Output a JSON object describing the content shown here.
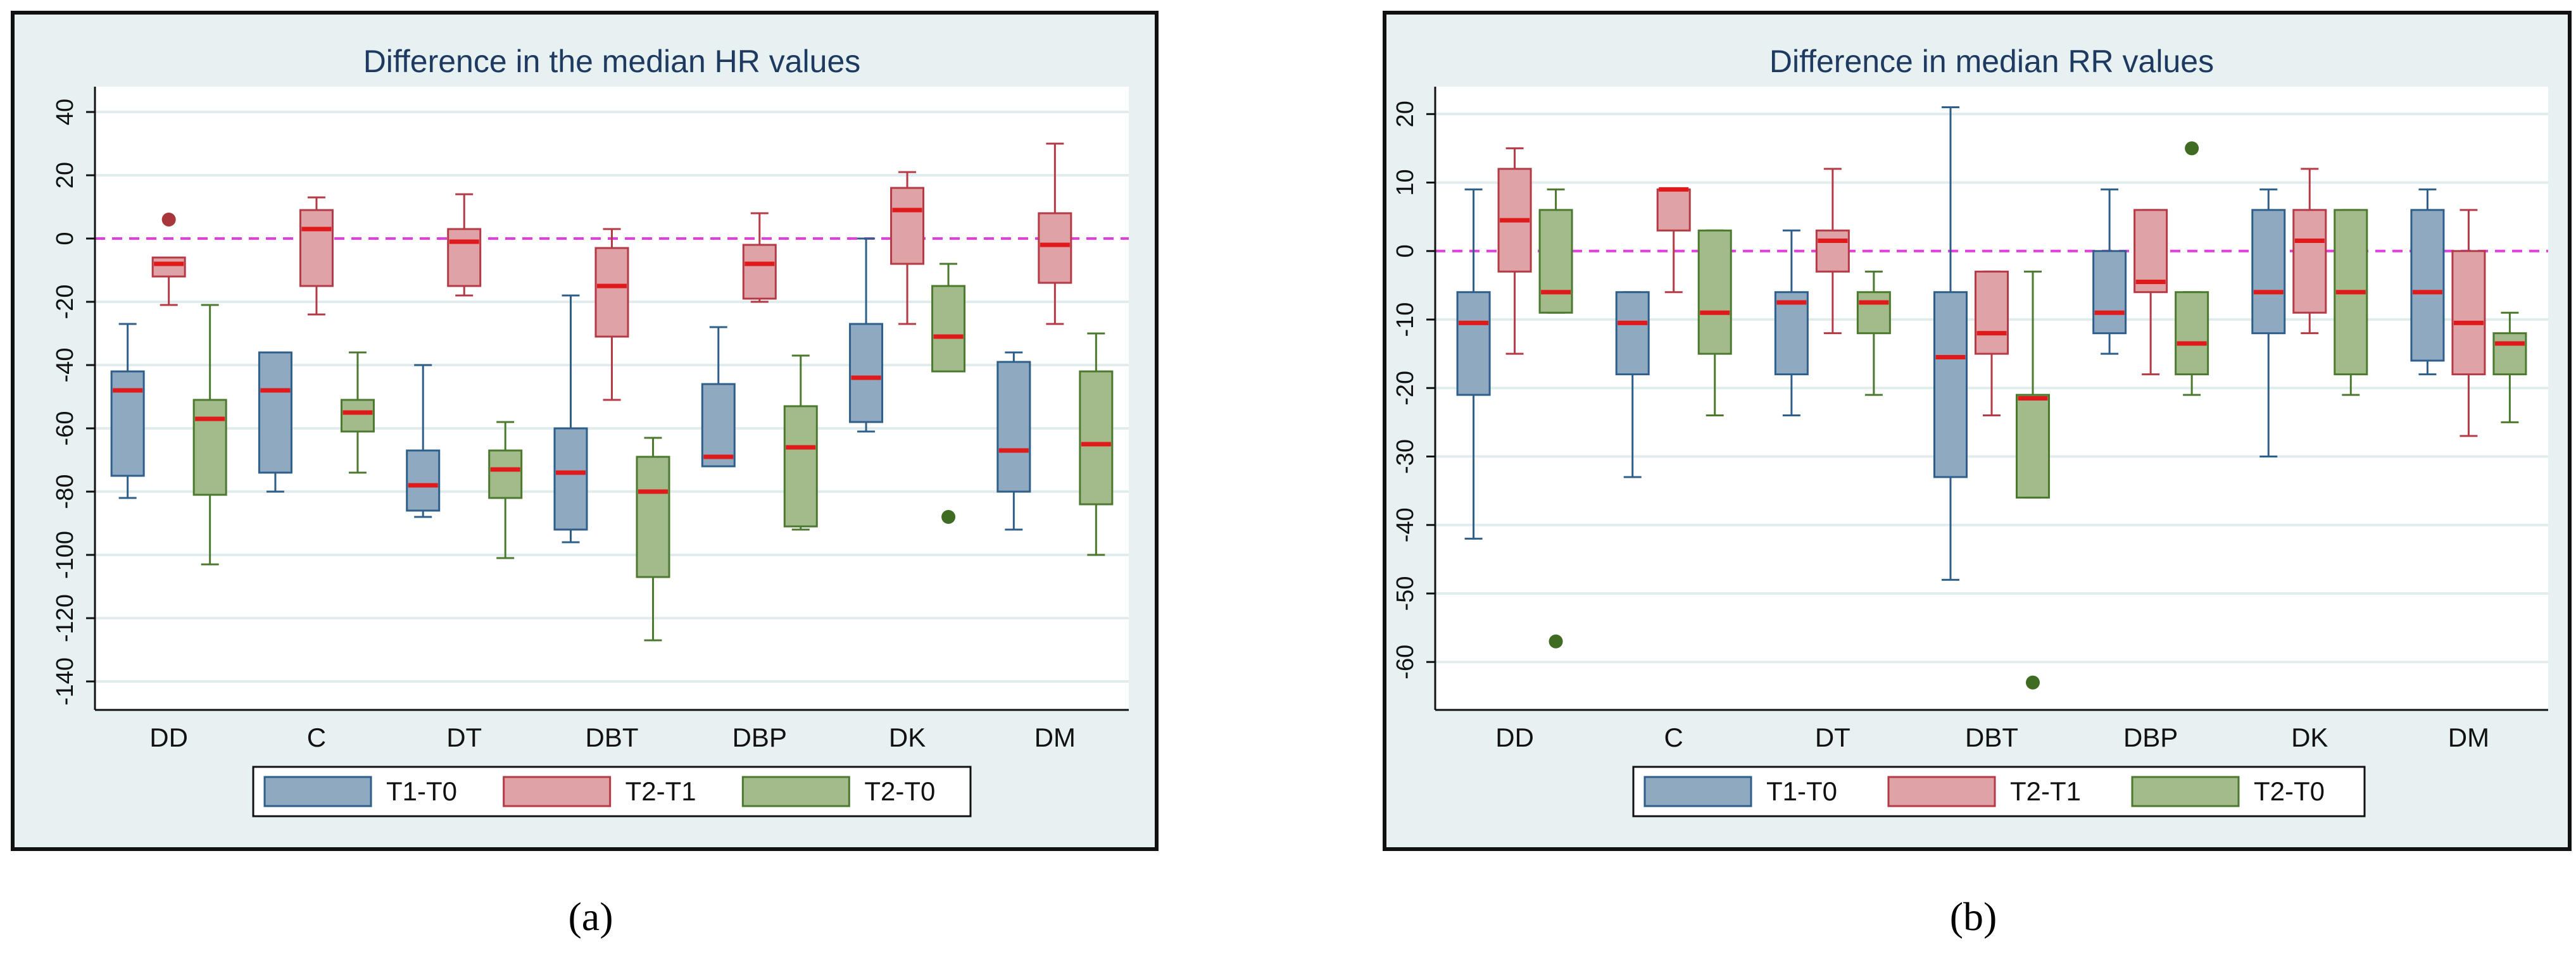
{
  "colors": {
    "panel_bg": "#e7f1f1",
    "panel_border": "#111111",
    "plot_bg": "#ffffff",
    "grid": "#e1ecee",
    "title": "#1e3a60",
    "axis": "#111111",
    "zero_line": "#e43ce0",
    "median": "#e01a1a",
    "series_fill": [
      "#8ea9c0",
      "#dea2a7",
      "#a3bb8b"
    ],
    "series_stroke": [
      "#2e5f8a",
      "#b53a45",
      "#4b7a2f"
    ],
    "outlier": [
      "#2e5f8a",
      "#a8363b",
      "#3f6b22"
    ]
  },
  "legend_labels": [
    "T1-T0",
    "T2-T1",
    "T2-T0"
  ],
  "panel_labels": [
    "a",
    "b"
  ],
  "chart_data": [
    {
      "type": "boxplot",
      "title": "Difference in the median HR values",
      "categories": [
        "DD",
        "C",
        "DT",
        "DBT",
        "DBP",
        "DK",
        "DM"
      ],
      "ylim": [
        -149,
        48
      ],
      "yticks": [
        40,
        20,
        0,
        -20,
        -40,
        -60,
        -80,
        -100,
        -120,
        -140
      ],
      "ytick_labels": [
        "40",
        "20",
        "0",
        "-20",
        "-40",
        "-60",
        "-80",
        "-100",
        "-120",
        "-140"
      ],
      "reference_line": 0,
      "legend_position": "bottom",
      "series": [
        {
          "name": "T1-T0",
          "boxes": [
            {
              "min": -82,
              "q1": -75,
              "median": -48,
              "q3": -42,
              "max": -27,
              "outliers": []
            },
            {
              "min": -80,
              "q1": -74,
              "median": -48,
              "q3": -36,
              "max": -36,
              "outliers": []
            },
            {
              "min": -88,
              "q1": -86,
              "median": -78,
              "q3": -67,
              "max": -40,
              "outliers": []
            },
            {
              "min": -96,
              "q1": -92,
              "median": -74,
              "q3": -60,
              "max": -18,
              "outliers": []
            },
            {
              "min": -72,
              "q1": -72,
              "median": -69,
              "q3": -46,
              "max": -28,
              "outliers": []
            },
            {
              "min": -61,
              "q1": -58,
              "median": -44,
              "q3": -27,
              "max": 0,
              "outliers": []
            },
            {
              "min": -92,
              "q1": -80,
              "median": -67,
              "q3": -39,
              "max": -36,
              "outliers": []
            }
          ]
        },
        {
          "name": "T2-T1",
          "boxes": [
            {
              "min": -21,
              "q1": -12,
              "median": -8,
              "q3": -6,
              "max": -6,
              "outliers": [
                6
              ]
            },
            {
              "min": -24,
              "q1": -15,
              "median": 3,
              "q3": 9,
              "max": 13,
              "outliers": []
            },
            {
              "min": -18,
              "q1": -15,
              "median": -1,
              "q3": 3,
              "max": 14,
              "outliers": []
            },
            {
              "min": -51,
              "q1": -31,
              "median": -15,
              "q3": -3,
              "max": 3,
              "outliers": []
            },
            {
              "min": -20,
              "q1": -19,
              "median": -8,
              "q3": -2,
              "max": 8,
              "outliers": []
            },
            {
              "min": -27,
              "q1": -8,
              "median": 9,
              "q3": 16,
              "max": 21,
              "outliers": []
            },
            {
              "min": -27,
              "q1": -14,
              "median": -2,
              "q3": 8,
              "max": 30,
              "outliers": []
            }
          ]
        },
        {
          "name": "T2-T0",
          "boxes": [
            {
              "min": -103,
              "q1": -81,
              "median": -57,
              "q3": -51,
              "max": -21,
              "outliers": []
            },
            {
              "min": -74,
              "q1": -61,
              "median": -55,
              "q3": -51,
              "max": -36,
              "outliers": []
            },
            {
              "min": -101,
              "q1": -82,
              "median": -73,
              "q3": -67,
              "max": -58,
              "outliers": []
            },
            {
              "min": -127,
              "q1": -107,
              "median": -80,
              "q3": -69,
              "max": -63,
              "outliers": []
            },
            {
              "min": -92,
              "q1": -91,
              "median": -66,
              "q3": -53,
              "max": -37,
              "outliers": []
            },
            {
              "min": -42,
              "q1": -42,
              "median": -31,
              "q3": -15,
              "max": -8,
              "outliers": [
                -88
              ]
            },
            {
              "min": -100,
              "q1": -84,
              "median": -65,
              "q3": -42,
              "max": -30,
              "outliers": []
            }
          ]
        }
      ]
    },
    {
      "type": "boxplot",
      "title": "Difference in median RR values",
      "categories": [
        "DD",
        "C",
        "DT",
        "DBT",
        "DBP",
        "DK",
        "DM"
      ],
      "ylim": [
        -67,
        24
      ],
      "yticks": [
        20,
        10,
        0,
        -10,
        -20,
        -30,
        -40,
        -50,
        -60
      ],
      "ytick_labels": [
        "20",
        "10",
        "0",
        "-10",
        "-20",
        "-30",
        "-40",
        "-50",
        "-60"
      ],
      "reference_line": 0,
      "legend_position": "bottom",
      "series": [
        {
          "name": "T1-T0",
          "boxes": [
            {
              "min": -42,
              "q1": -21,
              "median": -10.5,
              "q3": -6,
              "max": 9,
              "outliers": []
            },
            {
              "min": -33,
              "q1": -18,
              "median": -10.5,
              "q3": -6,
              "max": -6,
              "outliers": []
            },
            {
              "min": -24,
              "q1": -18,
              "median": -7.5,
              "q3": -6,
              "max": 3,
              "outliers": []
            },
            {
              "min": -48,
              "q1": -33,
              "median": -15.5,
              "q3": -6,
              "max": 21,
              "outliers": []
            },
            {
              "min": -15,
              "q1": -12,
              "median": -9,
              "q3": 0,
              "max": 9,
              "outliers": []
            },
            {
              "min": -30,
              "q1": -12,
              "median": -6,
              "q3": 6,
              "max": 9,
              "outliers": []
            },
            {
              "min": -18,
              "q1": -16,
              "median": -6,
              "q3": 6,
              "max": 9,
              "outliers": []
            }
          ]
        },
        {
          "name": "T2-T1",
          "boxes": [
            {
              "min": -15,
              "q1": -3,
              "median": 4.5,
              "q3": 12,
              "max": 15,
              "outliers": []
            },
            {
              "min": -6,
              "q1": 3,
              "median": 9,
              "q3": 9,
              "max": 9,
              "outliers": []
            },
            {
              "min": -12,
              "q1": -3,
              "median": 1.5,
              "q3": 3,
              "max": 12,
              "outliers": []
            },
            {
              "min": -24,
              "q1": -15,
              "median": -12,
              "q3": -3,
              "max": -3,
              "outliers": []
            },
            {
              "min": -18,
              "q1": -6,
              "median": -4.5,
              "q3": 6,
              "max": 6,
              "outliers": []
            },
            {
              "min": -12,
              "q1": -9,
              "median": 1.5,
              "q3": 6,
              "max": 12,
              "outliers": []
            },
            {
              "min": -27,
              "q1": -18,
              "median": -10.5,
              "q3": 0,
              "max": 6,
              "outliers": []
            }
          ]
        },
        {
          "name": "T2-T0",
          "boxes": [
            {
              "min": -9,
              "q1": -9,
              "median": -6,
              "q3": 6,
              "max": 9,
              "outliers": [
                -57
              ]
            },
            {
              "min": -24,
              "q1": -15,
              "median": -9,
              "q3": 3,
              "max": 3,
              "outliers": []
            },
            {
              "min": -21,
              "q1": -12,
              "median": -7.5,
              "q3": -6,
              "max": -3,
              "outliers": []
            },
            {
              "min": -36,
              "q1": -36,
              "median": -21.5,
              "q3": -21,
              "max": -3,
              "outliers": [
                -63
              ]
            },
            {
              "min": -21,
              "q1": -18,
              "median": -13.5,
              "q3": -6,
              "max": -6,
              "outliers": [
                15
              ]
            },
            {
              "min": -21,
              "q1": -18,
              "median": -6,
              "q3": 6,
              "max": 6,
              "outliers": []
            },
            {
              "min": -25,
              "q1": -18,
              "median": -13.5,
              "q3": -12,
              "max": -9,
              "outliers": []
            }
          ]
        }
      ]
    }
  ]
}
